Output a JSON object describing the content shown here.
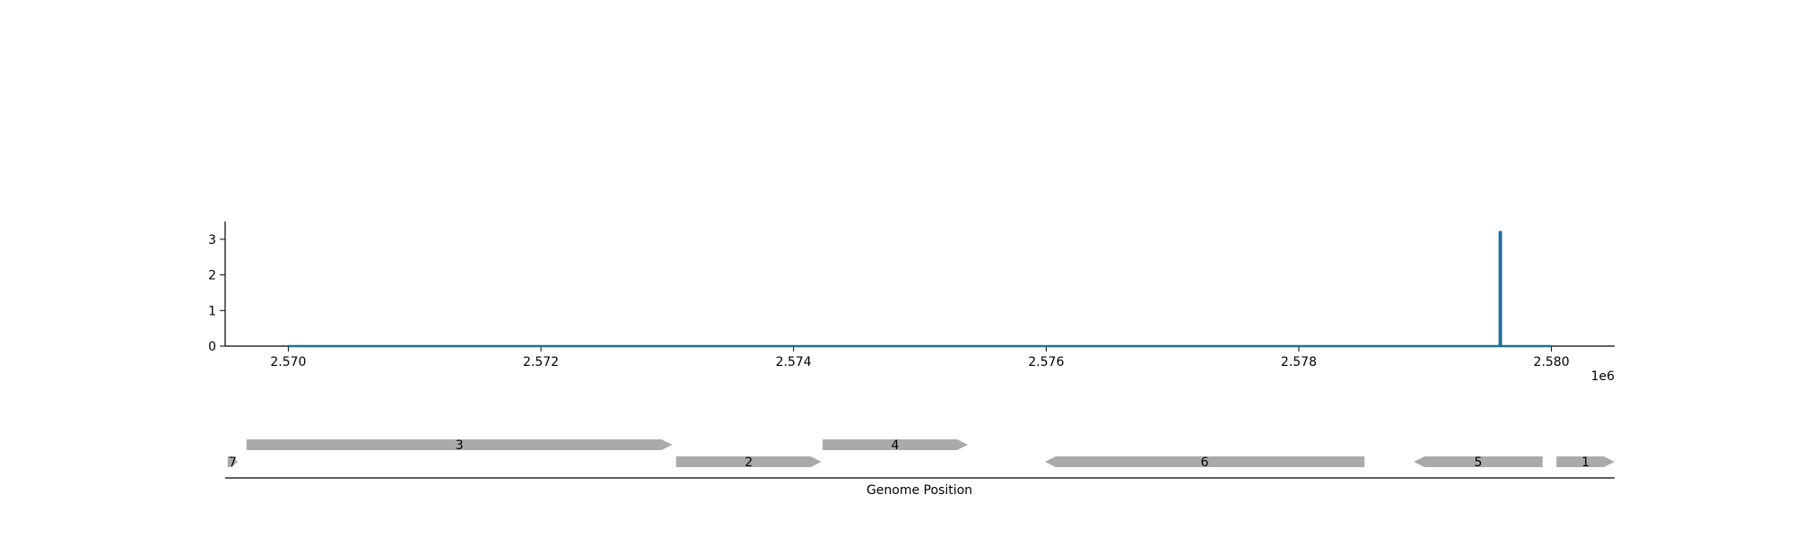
{
  "chart_data": [
    {
      "type": "line",
      "title": "",
      "xlabel": "",
      "ylabel": "",
      "xlim": [
        2569500,
        2580500
      ],
      "ylim": [
        0,
        3.5
      ],
      "x_offset_label": "1e6",
      "x_ticks": [
        2570000,
        2572000,
        2574000,
        2576000,
        2578000,
        2580000
      ],
      "x_tick_labels": [
        "2.570",
        "2.572",
        "2.574",
        "2.576",
        "2.578",
        "2.580"
      ],
      "y_ticks": [
        0,
        1,
        2,
        3
      ],
      "y_tick_labels": [
        "0",
        "1",
        "2",
        "3"
      ],
      "series": [
        {
          "color": "#1f6f99",
          "x": [
            2570000,
            2579590,
            2579590,
            2579600,
            2579600,
            2580000
          ],
          "y": [
            0,
            0,
            3.2,
            3.2,
            0,
            0
          ]
        }
      ],
      "grid": false
    },
    {
      "type": "gene-track",
      "xlabel": "Genome Position",
      "xlim": [
        2569500,
        2580500
      ],
      "gene_color": "#aaaaaa",
      "genes": [
        {
          "label": "7",
          "start": 2569520,
          "end": 2569600,
          "strand": "+",
          "row": 0
        },
        {
          "label": "3",
          "start": 2569670,
          "end": 2573040,
          "strand": "+",
          "row": 1
        },
        {
          "label": "2",
          "start": 2573070,
          "end": 2574220,
          "strand": "+",
          "row": 0
        },
        {
          "label": "4",
          "start": 2574230,
          "end": 2575380,
          "strand": "+",
          "row": 1
        },
        {
          "label": "6",
          "start": 2575990,
          "end": 2578520,
          "strand": "-",
          "row": 0
        },
        {
          "label": "5",
          "start": 2578910,
          "end": 2579930,
          "strand": "-",
          "row": 0
        },
        {
          "label": "1",
          "start": 2580040,
          "end": 2580500,
          "strand": "+",
          "row": 0
        }
      ]
    }
  ]
}
